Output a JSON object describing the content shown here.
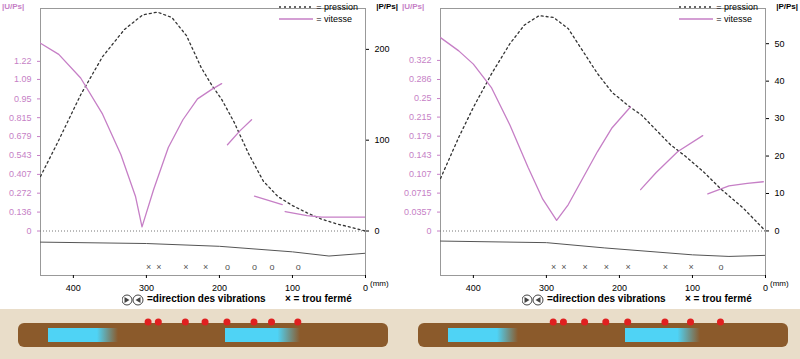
{
  "chart_data": [
    {
      "type": "line",
      "x_label": "(mm)",
      "y_label": "|U/Ps|",
      "y2_label": "|P/Ps|",
      "legend": "top-right",
      "xlim": [
        445,
        0
      ],
      "xticks": [
        400,
        300,
        200,
        100,
        0
      ],
      "ylim": [
        -0.32,
        1.6
      ],
      "yticks": [
        0,
        0.136,
        0.272,
        0.407,
        0.543,
        0.679,
        0.815,
        0.95,
        1.09,
        1.22
      ],
      "y2lim": [
        -49,
        245
      ],
      "y2ticks": [
        0,
        100,
        200
      ],
      "series": [
        {
          "name": "= pression",
          "color": "#333333",
          "line_style": "dotted",
          "axis": "y2",
          "x": [
            445,
            420,
            390,
            360,
            330,
            305,
            285,
            265,
            245,
            225,
            210,
            197,
            180,
            160,
            140,
            120,
            100,
            80,
            60,
            40,
            20,
            0
          ],
          "values": [
            60,
            100,
            150,
            192,
            222,
            238,
            241,
            235,
            215,
            180,
            160,
            145,
            120,
            85,
            55,
            38,
            28,
            20,
            13,
            8,
            4,
            0
          ]
        },
        {
          "name": "= vitesse",
          "color": "#c67fc6",
          "line_style": "solid",
          "x": [
            445,
            420,
            390,
            360,
            335,
            315,
            306,
            290,
            270,
            250,
            230,
            210,
            197,
            193,
            189,
            172,
            156,
            154,
            152,
            133,
            114,
            112,
            110,
            80,
            60,
            0
          ],
          "values": [
            1.35,
            1.27,
            1.1,
            0.84,
            0.55,
            0.25,
            0.03,
            0.3,
            0.6,
            0.8,
            0.95,
            1.02,
            1.06,
            null,
            0.62,
            0.72,
            0.8,
            null,
            0.25,
            0.22,
            0.19,
            null,
            0.14,
            0.11,
            0.1,
            0.1
          ]
        }
      ],
      "bore": {
        "x": [
          445,
          300,
          200,
          100,
          50,
          0
        ],
        "values": [
          -0.08,
          -0.09,
          -0.11,
          -0.15,
          -0.18,
          -0.16
        ]
      },
      "holes": {
        "x": [
          297,
          283,
          246,
          219,
          189,
          152,
          128,
          92
        ],
        "labels": [
          "×",
          "×",
          "×",
          "×",
          "o",
          "o",
          "o",
          "o"
        ]
      },
      "annotations": [
        "=direction des vibrations",
        "× = trou fermé"
      ]
    },
    {
      "type": "line",
      "x_label": "(mm)",
      "y_label": "|U/Ps|",
      "y2_label": "|P/Ps|",
      "legend": "top-right",
      "xlim": [
        445,
        0
      ],
      "xticks": [
        400,
        300,
        200,
        100,
        0
      ],
      "ylim": [
        -0.084,
        0.42
      ],
      "yticks": [
        0,
        0.0357,
        0.0715,
        0.107,
        0.143,
        0.179,
        0.215,
        0.25,
        0.286,
        0.322
      ],
      "y2lim": [
        -11.9,
        59.4
      ],
      "y2ticks": [
        0,
        10,
        20,
        30,
        40,
        50
      ],
      "series": [
        {
          "name": "= pression",
          "color": "#333333",
          "line_style": "dotted",
          "axis": "y2",
          "x": [
            445,
            420,
            400,
            375,
            350,
            330,
            310,
            290,
            270,
            250,
            230,
            210,
            185,
            170,
            150,
            130,
            110,
            86,
            60,
            30,
            0
          ],
          "values": [
            14,
            25,
            33,
            42,
            50,
            55,
            57.5,
            57,
            54,
            48,
            42,
            37,
            33,
            31,
            27,
            23,
            20,
            16,
            11,
            6,
            0
          ]
        },
        {
          "name": "= vitesse",
          "color": "#c67fc6",
          "line_style": "solid",
          "x": [
            445,
            420,
            400,
            375,
            350,
            325,
            305,
            286,
            270,
            250,
            230,
            210,
            185,
            178,
            171,
            150,
            120,
            86,
            82,
            79,
            50,
            25,
            3
          ],
          "values": [
            0.365,
            0.34,
            0.315,
            0.27,
            0.2,
            0.12,
            0.06,
            0.02,
            0.05,
            0.1,
            0.15,
            0.195,
            0.234,
            null,
            0.078,
            0.11,
            0.15,
            0.18,
            null,
            0.07,
            0.085,
            0.09,
            0.093
          ]
        }
      ],
      "bore": {
        "x": [
          445,
          300,
          220,
          100,
          50,
          0
        ],
        "values": [
          -0.019,
          -0.022,
          -0.032,
          -0.045,
          -0.048,
          -0.046
        ]
      },
      "holes": {
        "x": [
          290,
          276,
          247,
          218,
          188,
          137,
          102,
          61
        ],
        "labels": [
          "×",
          "×",
          "×",
          "×",
          "×",
          "×",
          "×",
          "o"
        ]
      },
      "annotations": [
        "=direction des vibrations",
        "× = trou fermé"
      ]
    }
  ]
}
